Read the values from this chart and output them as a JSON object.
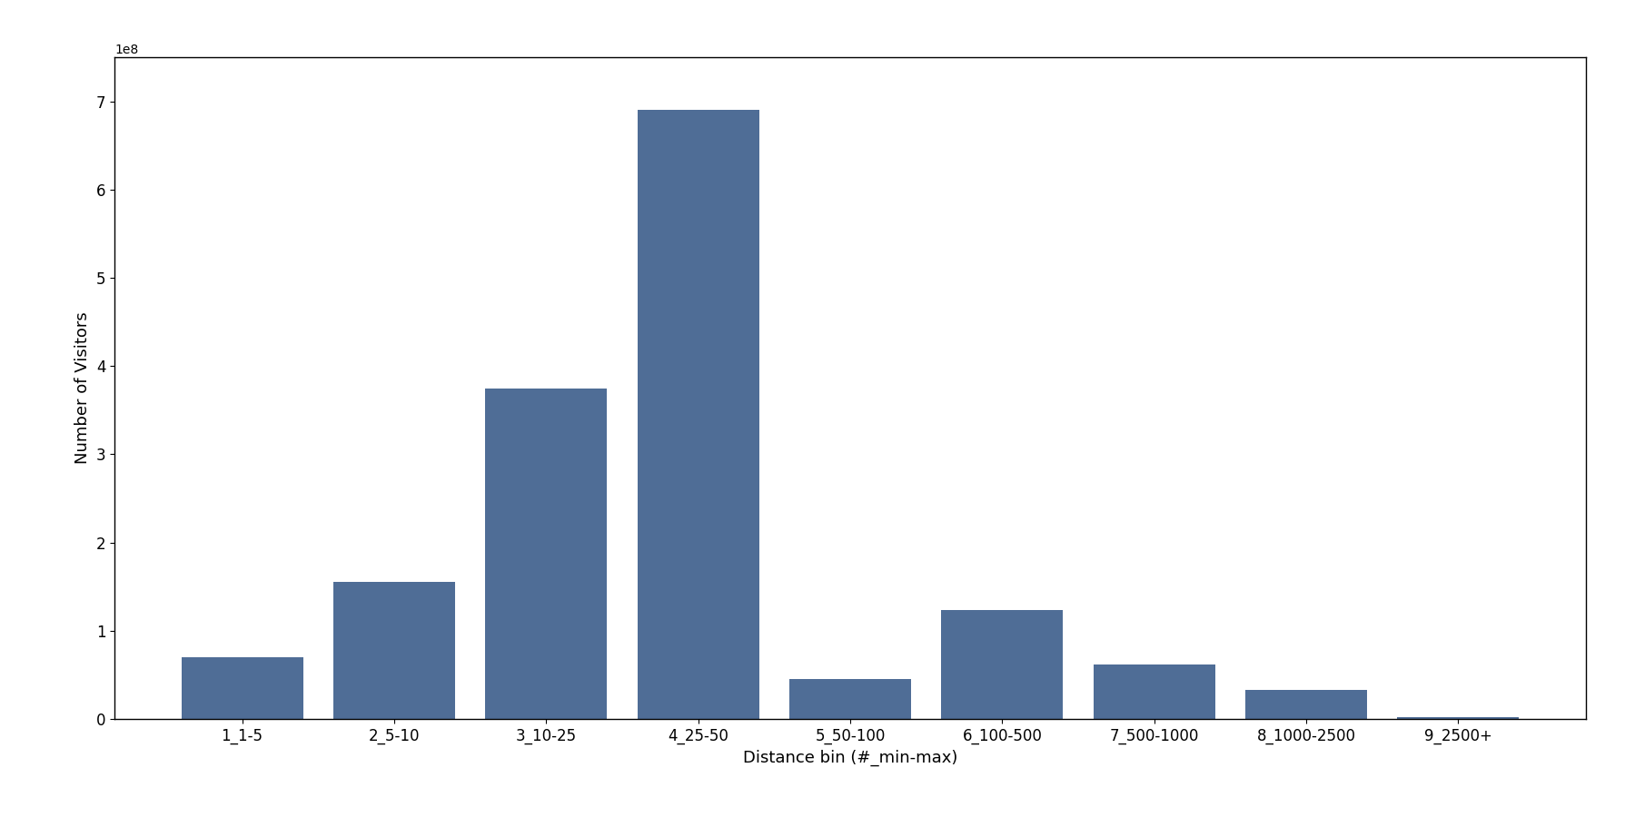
{
  "categories": [
    "1_1-5",
    "2_5-10",
    "3_10-25",
    "4_25-50",
    "5_50-100",
    "6_100-500",
    "7_500-1000",
    "8_1000-2500",
    "9_2500+"
  ],
  "values": [
    70000000.0,
    155000000.0,
    375000000.0,
    690000000.0,
    45000000.0,
    123000000.0,
    62000000.0,
    33000000.0,
    2000000.0
  ],
  "bar_color": "#4f6d96",
  "xlabel": "Distance bin (#_min-max)",
  "ylabel": "Number of Visitors",
  "ylim": [
    0,
    750000000.0
  ],
  "background_color": "#ffffff",
  "bar_width": 0.8,
  "xlabel_fontsize": 13,
  "ylabel_fontsize": 13,
  "tick_fontsize": 12
}
